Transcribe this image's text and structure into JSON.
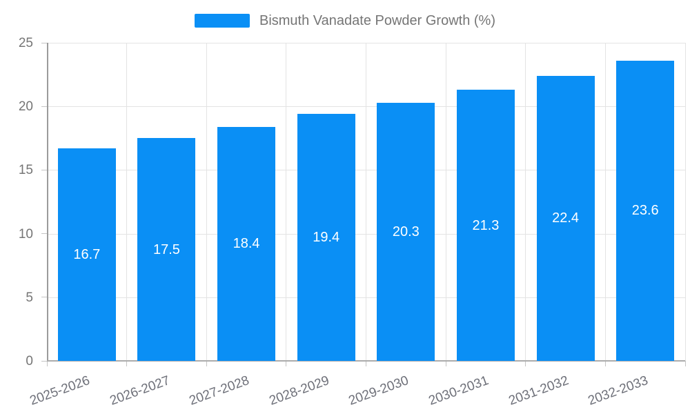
{
  "chart_data": {
    "type": "bar",
    "title": "",
    "xlabel": "",
    "ylabel": "",
    "categories": [
      "2025-2026",
      "2026-2027",
      "2027-2028",
      "2028-2029",
      "2029-2030",
      "2030-2031",
      "2031-2032",
      "2032-2033"
    ],
    "series": [
      {
        "name": "Bismuth Vanadate Powder Growth (%)",
        "values": [
          16.7,
          17.5,
          18.4,
          19.4,
          20.3,
          21.3,
          22.4,
          23.6
        ]
      }
    ],
    "value_labels": [
      "16.7",
      "17.5",
      "18.4",
      "19.4",
      "20.3",
      "21.3",
      "22.4",
      "23.6"
    ],
    "ylim": [
      0,
      25
    ],
    "yticks": [
      0,
      5,
      10,
      15,
      20,
      25
    ],
    "grid": true,
    "legend_position": "top-center",
    "x_tick_label_rotation_deg": 20,
    "colors": {
      "bar": "#0a8ff5",
      "bar_value_label": "#ffffff",
      "grid_line": "#e3e3e3",
      "axis_line": "#a6a6a6",
      "tick_label": "#757575",
      "legend_text": "#757575",
      "background": "#ffffff"
    }
  }
}
